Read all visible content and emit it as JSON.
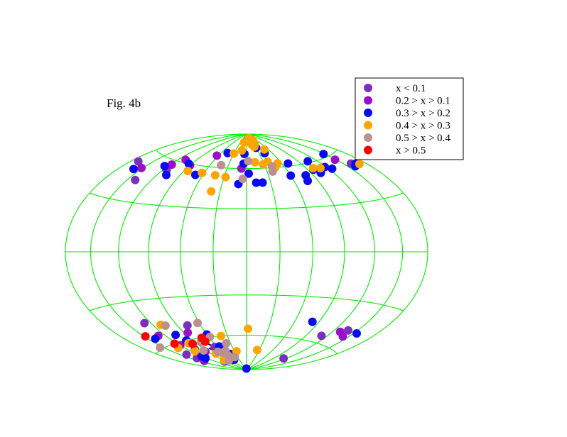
{
  "figure_label": "Fig. 4b",
  "colors": {
    "grid": "#00ee00",
    "lt_01": "#7b2fbe",
    "r01_02": "#9a10c9",
    "r02_03": "#0a0af0",
    "r03_04": "#ffa500",
    "r04_05": "#bb9090",
    "gt_05": "#ff0000"
  },
  "chart_data": {
    "type": "scatter",
    "projection": "hammer-aitoff",
    "grid": true,
    "legend_position": "top-right",
    "series": [
      {
        "name": "x < 0.1",
        "color_key": "lt_01",
        "points": [
          [
            -170,
            52
          ],
          [
            -140,
            43
          ],
          [
            -115,
            53
          ],
          [
            -140,
            -68
          ],
          [
            -128,
            -44
          ],
          [
            -138,
            -72
          ],
          [
            -108,
            -67
          ],
          [
            -77,
            -50
          ],
          [
            115,
            -75
          ],
          [
            112,
            -55
          ],
          [
            138,
            -48
          ],
          [
            160,
            52
          ],
          [
            -65,
            -68
          ],
          [
            -95,
            -80
          ]
        ]
      },
      {
        "name": "0.2 > x > 0.1",
        "color_key": "r01_02",
        "points": [
          [
            -152,
            50
          ],
          [
            -118,
            57
          ],
          [
            -90,
            59
          ],
          [
            -108,
            62
          ],
          [
            -63,
            69
          ],
          [
            -8,
            60
          ],
          [
            148,
            57
          ],
          [
            -140,
            -75
          ],
          [
            -120,
            -62
          ],
          [
            -85,
            -55
          ],
          [
            -130,
            -53
          ],
          [
            130,
            -50
          ],
          [
            142,
            -52
          ],
          [
            -95,
            -70
          ],
          [
            -60,
            -80
          ]
        ]
      },
      {
        "name": "0.3 > x > 0.2",
        "color_key": "r02_03",
        "points": [
          [
            -125,
            55
          ],
          [
            -160,
            48
          ],
          [
            -95,
            60
          ],
          [
            -108,
            50
          ],
          [
            -70,
            53
          ],
          [
            -45,
            72
          ],
          [
            -5,
            64
          ],
          [
            -5,
            72
          ],
          [
            -10,
            48
          ],
          [
            -1,
            83
          ],
          [
            3,
            56
          ],
          [
            12,
            49
          ],
          [
            20,
            49
          ],
          [
            30,
            77
          ],
          [
            43,
            72
          ],
          [
            60,
            53
          ],
          [
            70,
            62
          ],
          [
            77,
            48
          ],
          [
            98,
            55
          ],
          [
            80,
            52
          ],
          [
            103,
            52
          ],
          [
            105,
            61
          ],
          [
            118,
            55
          ],
          [
            125,
            53
          ],
          [
            148,
            62
          ],
          [
            160,
            50
          ],
          [
            166,
            51
          ],
          [
            -140,
            -54
          ],
          [
            -105,
            -55
          ],
          [
            -120,
            -72
          ],
          [
            -60,
            -58
          ],
          [
            -55,
            -68
          ],
          [
            -45,
            -75
          ],
          [
            -50,
            -80
          ],
          [
            -5,
            -89
          ],
          [
            82,
            -47
          ],
          [
            154,
            -48
          ],
          [
            -122,
            -74
          ],
          [
            -100,
            -60
          ]
        ]
      },
      {
        "name": "0.4 > x > 0.3",
        "color_key": "r03_04",
        "points": [
          [
            -63,
            55
          ],
          [
            -85,
            55
          ],
          [
            -40,
            42
          ],
          [
            -43,
            54
          ],
          [
            -28,
            53
          ],
          [
            -30,
            72
          ],
          [
            -12,
            82
          ],
          [
            -13,
            75
          ],
          [
            15,
            65
          ],
          [
            20,
            80
          ],
          [
            33,
            80
          ],
          [
            38,
            65
          ],
          [
            45,
            60
          ],
          [
            40,
            84
          ],
          [
            22,
            86
          ],
          [
            28,
            63
          ],
          [
            53,
            63
          ],
          [
            50,
            75
          ],
          [
            26,
            78
          ],
          [
            100,
            56
          ],
          [
            110,
            55
          ],
          [
            170,
            50
          ],
          [
            -110,
            -47
          ],
          [
            -102,
            -62
          ],
          [
            -130,
            -63
          ],
          [
            -80,
            -73
          ],
          [
            -88,
            -79
          ],
          [
            -65,
            -75
          ],
          [
            -25,
            -73
          ],
          [
            2,
            -55
          ],
          [
            25,
            -72
          ],
          [
            -40,
            -60
          ],
          [
            -113,
            -68
          ],
          [
            -70,
            -78
          ]
        ]
      },
      {
        "name": "0.5 > x > 0.4",
        "color_key": "r04_05",
        "points": [
          [
            -42,
            62
          ],
          [
            -5,
            52
          ],
          [
            3,
            66
          ],
          [
            41,
            61
          ],
          [
            38,
            57
          ],
          [
            -155,
            -59
          ],
          [
            -105,
            -48
          ],
          [
            -62,
            -49
          ],
          [
            -95,
            -69
          ],
          [
            -70,
            -72
          ],
          [
            -59,
            -73
          ],
          [
            -74,
            -80
          ],
          [
            -38,
            -66
          ],
          [
            -58,
            -60
          ],
          [
            -40,
            -78
          ],
          [
            -80,
            -63
          ],
          [
            -55,
            -76
          ],
          [
            -50,
            -72
          ]
        ]
      },
      {
        "name": "x > 0.5",
        "color_key": "gt_05",
        "points": [
          [
            -148,
            -51
          ],
          [
            -124,
            -60
          ],
          [
            -97,
            -63
          ],
          [
            -72,
            -60
          ],
          [
            -72,
            -63
          ]
        ]
      }
    ],
    "tracks": [
      [
        [
          -78,
          -68
        ],
        [
          -60,
          -82
        ]
      ],
      [
        [
          -72,
          -64
        ],
        [
          -52,
          -76
        ]
      ]
    ]
  }
}
